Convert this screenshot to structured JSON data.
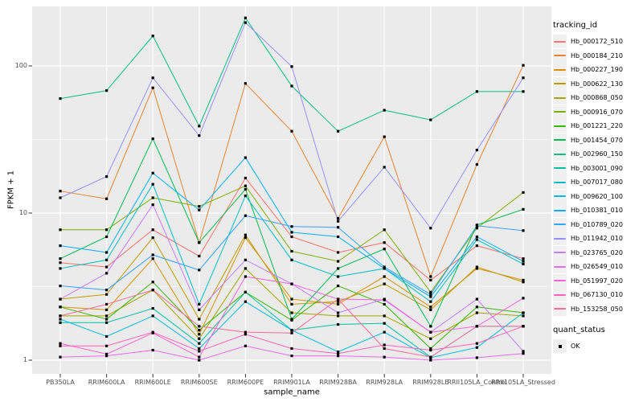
{
  "chart_data": {
    "type": "line",
    "title": "",
    "xlabel": "sample_name",
    "ylabel": "FPKM + 1",
    "y_scale": "log10",
    "y_ticks": [
      "1",
      "10",
      "100"
    ],
    "ylim_log": [
      0.81,
      254
    ],
    "grid": "white major and minor gridlines on gray panel",
    "legend_position": "right",
    "point_marker": "black-square",
    "colors": {
      "panel_bg": "#EBEBEB",
      "grid": "#FFFFFF",
      "point": "#000000",
      "axis_text": "#4D4D4D",
      "tick_mark": "#333333",
      "legend_key_bg": "#F0F0F0"
    },
    "legend": {
      "tracking_title": "tracking_id",
      "status_title": "quant_status",
      "status_label": "OK",
      "status_marker": "black-square-icon"
    },
    "x_categories": [
      "PB350LA",
      "RRIM600LA",
      "RRIM600LE",
      "RRIM600SE",
      "RRIM600PE",
      "RRIM901LA",
      "RRIM928BA",
      "RRIM928LA",
      "RRIM928LE",
      "RRII105LA_Control",
      "RRII105LA_Stressed"
    ],
    "series": [
      {
        "name": "Hb_000172_510",
        "color": "#F8766D",
        "values": [
          4.6,
          4.3,
          7.7,
          5.1,
          17.3,
          6.9,
          5.4,
          6.3,
          3.5,
          6.0,
          4.9
        ]
      },
      {
        "name": "Hb_000184_210",
        "color": "#EA8331",
        "values": [
          14.1,
          12.5,
          71,
          6.3,
          76,
          36,
          9.2,
          33,
          3.7,
          21.4,
          101
        ]
      },
      {
        "name": "Hb_000227_190",
        "color": "#D89000",
        "values": [
          2.3,
          2.2,
          4.9,
          1.5,
          6.8,
          2.6,
          2.4,
          3.7,
          2.3,
          4.2,
          3.5
        ]
      },
      {
        "name": "Hb_000622_130",
        "color": "#C09B00",
        "values": [
          2.6,
          2.8,
          6.8,
          1.9,
          7.1,
          2.4,
          2.5,
          3.3,
          2.2,
          4.3,
          3.4
        ]
      },
      {
        "name": "Hb_000868_050",
        "color": "#A3A500",
        "values": [
          2.0,
          2.0,
          3.0,
          1.4,
          4.2,
          2.1,
          2.0,
          2.0,
          1.4,
          2.1,
          2.0
        ]
      },
      {
        "name": "Hb_000916_070",
        "color": "#7CAE00",
        "values": [
          7.7,
          7.7,
          12.7,
          11.1,
          15.3,
          5.5,
          4.7,
          7.7,
          2.9,
          7.9,
          13.8
        ]
      },
      {
        "name": "Hb_001221_220",
        "color": "#39B600",
        "values": [
          2.3,
          1.9,
          3.4,
          1.6,
          2.9,
          1.87,
          3.2,
          2.4,
          1.2,
          2.3,
          2.1
        ]
      },
      {
        "name": "Hb_001454_070",
        "color": "#00BB4E",
        "values": [
          4.9,
          6.9,
          32,
          6.3,
          14.5,
          1.9,
          4.2,
          5.7,
          1.7,
          8.3,
          10.6
        ]
      },
      {
        "name": "Hb_002960_150",
        "color": "#00BF7D",
        "values": [
          60,
          68,
          160,
          39,
          212,
          73,
          36,
          50,
          43,
          67,
          67
        ]
      },
      {
        "name": "Hb_003001_090",
        "color": "#00C1A3",
        "values": [
          1.8,
          1.8,
          2.25,
          1.3,
          2.9,
          1.6,
          1.75,
          1.78,
          1.05,
          1.7,
          1.7
        ]
      },
      {
        "name": "Hb_007017_080",
        "color": "#00BFC4",
        "values": [
          4.2,
          4.8,
          15.7,
          2.4,
          13.1,
          4.8,
          3.7,
          4.2,
          2.5,
          6.6,
          4.5
        ]
      },
      {
        "name": "Hb_009620_100",
        "color": "#00BAE0",
        "values": [
          1.9,
          1.45,
          2.0,
          1.2,
          2.5,
          1.6,
          1.14,
          1.55,
          1.04,
          1.22,
          2.1
        ]
      },
      {
        "name": "Hb_010381_010",
        "color": "#00B0F6",
        "values": [
          6.0,
          5.4,
          18.7,
          10.5,
          23.8,
          7.4,
          6.9,
          4.2,
          2.7,
          6.9,
          4.7
        ]
      },
      {
        "name": "Hb_010789_020",
        "color": "#35A2FF",
        "values": [
          3.2,
          3.0,
          5.2,
          4.1,
          9.6,
          8.1,
          8.0,
          4.3,
          2.8,
          8.2,
          7.6
        ]
      },
      {
        "name": "Hb_011942_010",
        "color": "#9590FF",
        "values": [
          12.7,
          17.7,
          83,
          33.6,
          197,
          99,
          8.8,
          20.5,
          7.9,
          26.8,
          83
        ]
      },
      {
        "name": "Hb_023765_020",
        "color": "#C77CFF",
        "values": [
          2.6,
          3.9,
          11.4,
          2.2,
          4.8,
          3.3,
          2.1,
          2.6,
          1.55,
          2.6,
          1.15
        ]
      },
      {
        "name": "Hb_026549_010",
        "color": "#E76BF3",
        "values": [
          1.05,
          1.07,
          1.17,
          1.0,
          1.25,
          1.07,
          1.07,
          1.05,
          1.0,
          1.04,
          1.11
        ]
      },
      {
        "name": "Hb_051997_020",
        "color": "#FA62DB",
        "values": [
          1.3,
          1.1,
          1.53,
          1.05,
          3.7,
          3.3,
          2.6,
          2.57,
          1.55,
          1.7,
          2.64
        ]
      },
      {
        "name": "Hb_067130_010",
        "color": "#FF62BC",
        "values": [
          1.25,
          1.25,
          1.55,
          1.15,
          1.5,
          1.2,
          1.11,
          1.27,
          1.17,
          1.3,
          1.7
        ]
      },
      {
        "name": "Hb_153258_050",
        "color": "#FF6A98",
        "values": [
          2.0,
          2.4,
          3.0,
          1.7,
          1.55,
          1.53,
          2.6,
          1.2,
          1.05,
          1.7,
          1.7
        ]
      }
    ]
  }
}
